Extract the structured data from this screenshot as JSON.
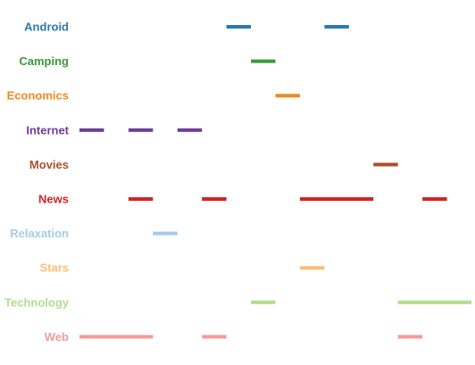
{
  "chart_data": {
    "type": "timeline",
    "title": "",
    "xlabel": "",
    "ylabel": "",
    "xlim": [
      0,
      16
    ],
    "grid": false,
    "categories": [
      {
        "name": "Android",
        "color": "#2e78b0",
        "segments": [
          [
            6,
            7
          ],
          [
            10,
            11
          ]
        ]
      },
      {
        "name": "Camping",
        "color": "#3a9a37",
        "segments": [
          [
            7,
            8
          ]
        ]
      },
      {
        "name": "Economics",
        "color": "#f08a1c",
        "segments": [
          [
            8,
            9
          ]
        ]
      },
      {
        "name": "Internet",
        "color": "#6b3f98",
        "segments": [
          [
            0,
            1
          ],
          [
            2,
            3
          ],
          [
            4,
            5
          ]
        ]
      },
      {
        "name": "Movies",
        "color": "#a6522d",
        "segments": [
          [
            12,
            13
          ]
        ]
      },
      {
        "name": "News",
        "color": "#d42327",
        "segments": [
          [
            2,
            3
          ],
          [
            5,
            6
          ],
          [
            9,
            12
          ],
          [
            14,
            15
          ]
        ]
      },
      {
        "name": "Relaxation",
        "color": "#a7cbe3",
        "segments": [
          [
            3,
            4
          ]
        ]
      },
      {
        "name": "Stars",
        "color": "#fbbe72",
        "segments": [
          [
            9,
            10
          ]
        ]
      },
      {
        "name": "Technology",
        "color": "#b1de8b",
        "segments": [
          [
            7,
            8
          ],
          [
            13,
            16
          ]
        ]
      },
      {
        "name": "Web",
        "color": "#f59a9a",
        "segments": [
          [
            0,
            3
          ],
          [
            5,
            6
          ],
          [
            13,
            14
          ]
        ]
      }
    ]
  }
}
